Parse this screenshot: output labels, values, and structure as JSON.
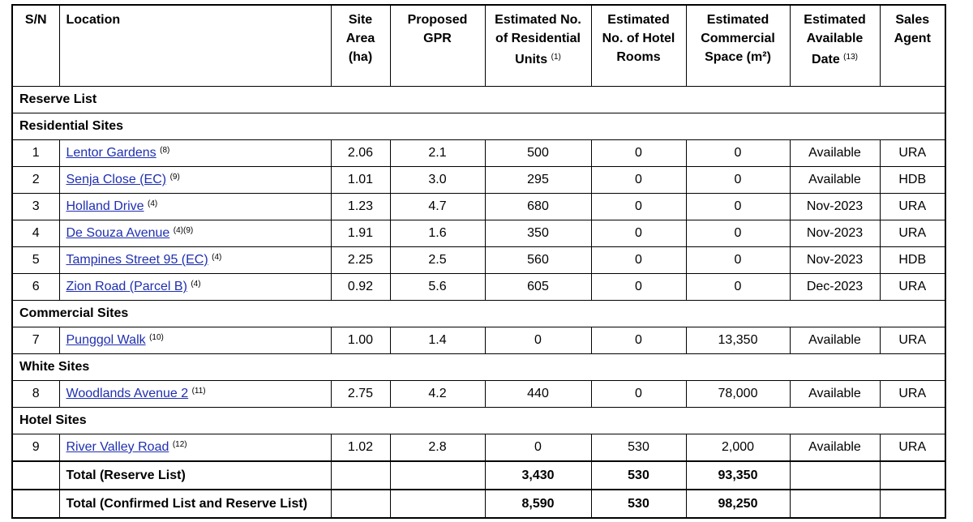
{
  "table": {
    "columns": [
      {
        "text": "S/N"
      },
      {
        "text": "Location"
      },
      {
        "text": "Site Area (ha)"
      },
      {
        "text": "Proposed GPR"
      },
      {
        "text": "Estimated No. of Residential Units",
        "note": "(1)"
      },
      {
        "text": "Estimated No. of Hotel Rooms"
      },
      {
        "text": "Estimated Commercial Space (m²)"
      },
      {
        "text": "Estimated Available Date",
        "note": "(13)"
      },
      {
        "text": "Sales Agent"
      }
    ],
    "list_label": "Reserve List",
    "sections": [
      {
        "title": "Residential Sites",
        "rows": [
          {
            "sn": "1",
            "location": "Lentor Gardens",
            "note": "(8)",
            "site_area": "2.06",
            "gpr": "2.1",
            "units": "500",
            "rooms": "0",
            "commercial": "0",
            "date": "Available",
            "agent": "URA"
          },
          {
            "sn": "2",
            "location": "Senja Close (EC)",
            "note": "(9)",
            "site_area": "1.01",
            "gpr": "3.0",
            "units": "295",
            "rooms": "0",
            "commercial": "0",
            "date": "Available",
            "agent": "HDB"
          },
          {
            "sn": "3",
            "location": "Holland Drive",
            "note": "(4)",
            "site_area": "1.23",
            "gpr": "4.7",
            "units": "680",
            "rooms": "0",
            "commercial": "0",
            "date": "Nov-2023",
            "agent": "URA"
          },
          {
            "sn": "4",
            "location": "De Souza Avenue",
            "note": "(4)(9)",
            "site_area": "1.91",
            "gpr": "1.6",
            "units": "350",
            "rooms": "0",
            "commercial": "0",
            "date": "Nov-2023",
            "agent": "URA"
          },
          {
            "sn": "5",
            "location": "Tampines Street 95 (EC)",
            "note": "(4)",
            "site_area": "2.25",
            "gpr": "2.5",
            "units": "560",
            "rooms": "0",
            "commercial": "0",
            "date": "Nov-2023",
            "agent": "HDB"
          },
          {
            "sn": "6",
            "location": "Zion Road (Parcel B)",
            "note": "(4)",
            "site_area": "0.92",
            "gpr": "5.6",
            "units": "605",
            "rooms": "0",
            "commercial": "0",
            "date": "Dec-2023",
            "agent": "URA"
          }
        ]
      },
      {
        "title": "Commercial Sites",
        "rows": [
          {
            "sn": "7",
            "location": "Punggol Walk",
            "note": "(10)",
            "site_area": "1.00",
            "gpr": "1.4",
            "units": "0",
            "rooms": "0",
            "commercial": "13,350",
            "date": "Available",
            "agent": "URA"
          }
        ]
      },
      {
        "title": "White Sites",
        "rows": [
          {
            "sn": "8",
            "location": "Woodlands Avenue 2",
            "note": "(11)",
            "site_area": "2.75",
            "gpr": "4.2",
            "units": "440",
            "rooms": "0",
            "commercial": "78,000",
            "date": "Available",
            "agent": "URA"
          }
        ]
      },
      {
        "title": "Hotel Sites",
        "rows": [
          {
            "sn": "9",
            "location": "River Valley Road",
            "note": "(12)",
            "site_area": "1.02",
            "gpr": "2.8",
            "units": "0",
            "rooms": "530",
            "commercial": "2,000",
            "date": "Available",
            "agent": "URA"
          }
        ]
      }
    ],
    "totals": [
      {
        "label": "Total (Reserve List)",
        "units": "3,430",
        "rooms": "530",
        "commercial": "93,350"
      },
      {
        "label": "Total (Confirmed List and Reserve List)",
        "units": "8,590",
        "rooms": "530",
        "commercial": "98,250"
      }
    ]
  }
}
